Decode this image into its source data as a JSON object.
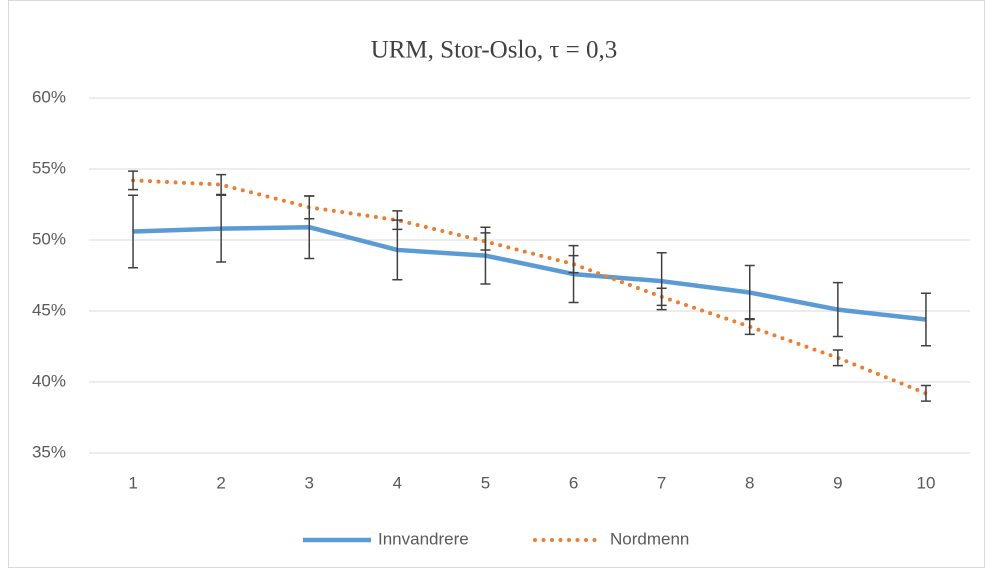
{
  "chart_data": {
    "type": "line",
    "title": "URM, Stor-Oslo, τ = 0,3",
    "categories": [
      "1",
      "2",
      "3",
      "4",
      "5",
      "6",
      "7",
      "8",
      "9",
      "10"
    ],
    "series": [
      {
        "name": "Innvandrere",
        "color": "#5b9bd5",
        "style": "solid",
        "values": [
          50.6,
          50.8,
          50.9,
          49.3,
          48.9,
          47.6,
          47.1,
          46.3,
          45.1,
          44.4
        ],
        "errors": [
          2.55,
          2.35,
          2.2,
          2.1,
          2.0,
          2.0,
          2.0,
          1.9,
          1.9,
          1.85
        ]
      },
      {
        "name": "Nordmenn",
        "color": "#ed7d31",
        "style": "dotted",
        "values": [
          54.2,
          53.9,
          52.3,
          51.4,
          49.9,
          48.3,
          46.0,
          43.9,
          41.7,
          39.2
        ],
        "errors": [
          0.65,
          0.7,
          0.8,
          0.65,
          0.6,
          0.6,
          0.6,
          0.55,
          0.55,
          0.55
        ]
      }
    ],
    "error_color": "#404040",
    "ylim": [
      35,
      60
    ],
    "yticks": [
      {
        "value": 35,
        "label": "35%"
      },
      {
        "value": 40,
        "label": "40%"
      },
      {
        "value": 45,
        "label": "45%"
      },
      {
        "value": 50,
        "label": "50%"
      },
      {
        "value": 55,
        "label": "55%"
      },
      {
        "value": 60,
        "label": "60%"
      }
    ],
    "grid": true,
    "legend": "bottom"
  }
}
